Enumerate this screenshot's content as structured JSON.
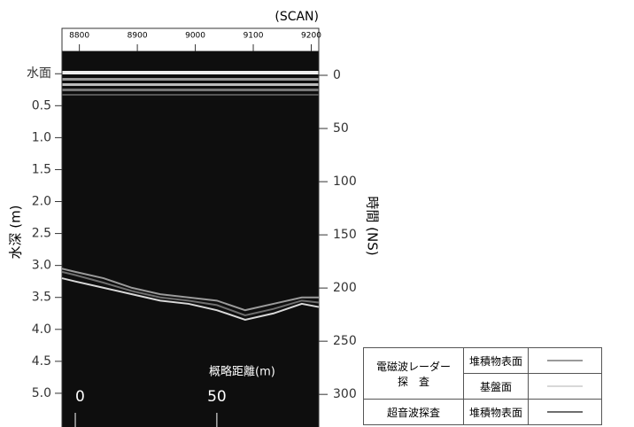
{
  "chart_data": {
    "type": "radargram",
    "x_title": "(SCAN)",
    "y_title": "水深 (m)",
    "y2_title": "時間 (NS)",
    "distance_title": "概略距離(m)",
    "xlim": [
      8770,
      9213
    ],
    "xticks": [
      8800,
      8900,
      9000,
      9100,
      9200
    ],
    "ylim": [
      -0.35,
      5.5
    ],
    "yticks": [
      {
        "value": 0,
        "label": "水面"
      },
      0.5,
      {
        "value": 1,
        "label": "1.0"
      },
      1.5,
      {
        "value": 2,
        "label": "2.0"
      },
      2.5,
      {
        "value": 3,
        "label": "3.0"
      },
      3.5,
      {
        "value": 4,
        "label": "4.0"
      },
      4.5,
      {
        "value": 5,
        "label": "5.0"
      }
    ],
    "y2lim": [
      -22.5,
      329
    ],
    "y2ticks": [
      0,
      50,
      100,
      150,
      200,
      250,
      300
    ],
    "distance_lim": [
      -4.7,
      86
    ],
    "distance_ticks": [
      0,
      50
    ],
    "x": [
      -4.7,
      0,
      10,
      20,
      30,
      40,
      50,
      60,
      70,
      80,
      86
    ],
    "legend_groups": [
      {
        "label": [
          "電磁波レーダー",
          "探　査"
        ],
        "series": [
          {
            "name": "堆積物表面",
            "color": "#9a9a9a",
            "values": [
              3.05,
              3.1,
              3.2,
              3.35,
              3.45,
              3.5,
              3.55,
              3.7,
              3.6,
              3.5,
              3.5
            ]
          },
          {
            "name": "基盤面",
            "color": "#d8d8d8",
            "values": [
              3.2,
              3.25,
              3.35,
              3.45,
              3.55,
              3.6,
              3.7,
              3.85,
              3.75,
              3.6,
              3.65
            ]
          }
        ]
      },
      {
        "label": [
          "超音波探査"
        ],
        "series": [
          {
            "name": "堆積物表面",
            "color": "#6e6e6e",
            "values": [
              3.1,
              3.15,
              3.27,
              3.4,
              3.5,
              3.55,
              3.62,
              3.78,
              3.68,
              3.55,
              3.58
            ]
          }
        ]
      }
    ]
  }
}
